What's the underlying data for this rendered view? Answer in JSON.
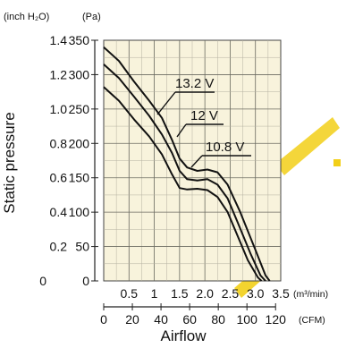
{
  "chart_data": {
    "type": "line",
    "xlabel": "Airflow",
    "ylabel": "Static pressure",
    "y_unit_primary": "(Pa)",
    "y_unit_secondary": "(inch H₂O)",
    "x_unit_primary": "(m³/min)",
    "x_unit_secondary": "(CFM)",
    "xlim": [
      0,
      3.5
    ],
    "ylim": [
      0,
      350
    ],
    "x_ticks": [
      "0.5",
      "1",
      "1.5",
      "2.0",
      "2.5",
      "3.0",
      "3.5"
    ],
    "x_tick_values": [
      0.5,
      1,
      1.5,
      2.0,
      2.5,
      3.0,
      3.5
    ],
    "x_secondary_ticks": [
      "0",
      "20",
      "40",
      "60",
      "80",
      "100",
      "120"
    ],
    "y_ticks": [
      "0",
      "50",
      "100",
      "150",
      "200",
      "250",
      "300",
      "350"
    ],
    "y_tick_values": [
      0,
      50,
      100,
      150,
      200,
      250,
      300,
      350
    ],
    "y_secondary_ticks": [
      "0",
      "0.2",
      "0.4",
      "0.6",
      "0.8",
      "1.0",
      "1.2",
      "1.4"
    ],
    "y_zero_label": "0",
    "grid": true,
    "background": "#f8f3dc",
    "series": [
      {
        "name": "13.2 V",
        "x": [
          0,
          0.3,
          0.6,
          0.9,
          1.15,
          1.35,
          1.5,
          1.65,
          1.85,
          2.05,
          2.25,
          2.45,
          2.7,
          3.0,
          3.2,
          3.28
        ],
        "y": [
          340,
          320,
          290,
          262,
          237,
          205,
          178,
          165,
          160,
          162,
          158,
          140,
          100,
          45,
          8,
          0
        ]
      },
      {
        "name": "12 V",
        "x": [
          0,
          0.3,
          0.6,
          0.9,
          1.15,
          1.35,
          1.5,
          1.65,
          1.85,
          2.05,
          2.25,
          2.45,
          2.65,
          2.9,
          3.1,
          3.2
        ],
        "y": [
          315,
          295,
          268,
          240,
          213,
          186,
          160,
          148,
          146,
          148,
          140,
          120,
          85,
          40,
          8,
          0
        ]
      },
      {
        "name": "10.8 V",
        "x": [
          0,
          0.3,
          0.6,
          0.9,
          1.15,
          1.35,
          1.5,
          1.65,
          1.85,
          2.05,
          2.25,
          2.45,
          2.65,
          2.85,
          3.05,
          3.12
        ],
        "y": [
          282,
          262,
          235,
          210,
          184,
          155,
          135,
          133,
          134,
          132,
          122,
          100,
          65,
          30,
          5,
          0
        ]
      }
    ],
    "annotations": [
      "13.2 V",
      "12 V",
      "10.8 V"
    ]
  },
  "watermark_color": "#f2cf18"
}
